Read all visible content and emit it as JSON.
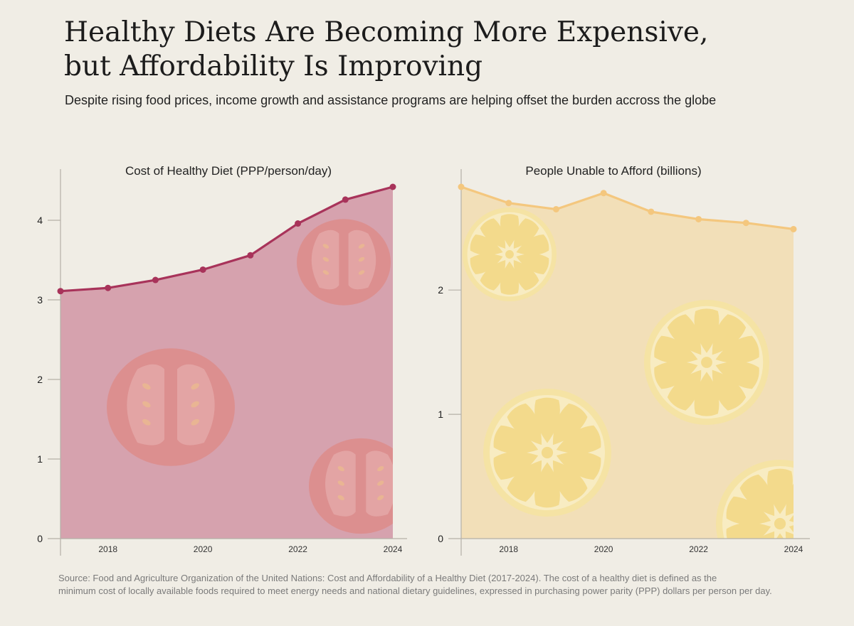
{
  "title_lines": [
    "Healthy Diets Are Becoming More Expensive,",
    "but Affordability Is Improving"
  ],
  "subtitle": "Despite rising food prices, income growth and assistance programs are helping offset the burden accross the globe",
  "source_lines": [
    "Source: Food and Agriculture Organization of the United Nations: Cost and Affordability of a Healthy Diet (2017-2024). The cost of a healthy diet is defined as the",
    "minimum cost of locally available foods required to meet energy needs and national dietary guidelines, expressed in purchasing power parity (PPP) dollars per person per day."
  ],
  "chart_data": [
    {
      "type": "area",
      "title": "Cost of Healthy Diet (PPP/person/day)",
      "x": [
        2017,
        2018,
        2019,
        2020,
        2021,
        2022,
        2023,
        2024
      ],
      "values": [
        3.11,
        3.15,
        3.25,
        3.38,
        3.56,
        3.96,
        4.26,
        4.42
      ],
      "xlim": [
        2017,
        2024
      ],
      "ylim": [
        0,
        4.42
      ],
      "xticks": [
        2018,
        2020,
        2022,
        2024
      ],
      "yticks": [
        0,
        1,
        2,
        3,
        4
      ],
      "colors": {
        "line": "#a8335a",
        "fill": "#d6a2ae",
        "decor": "tomato"
      }
    },
    {
      "type": "area",
      "title": "People Unable to Afford (billions)",
      "x": [
        2017,
        2018,
        2019,
        2020,
        2021,
        2022,
        2023,
        2024
      ],
      "values": [
        2.83,
        2.7,
        2.65,
        2.78,
        2.63,
        2.57,
        2.54,
        2.49
      ],
      "xlim": [
        2017,
        2024
      ],
      "ylim": [
        0,
        2.83
      ],
      "xticks": [
        2018,
        2020,
        2022,
        2024
      ],
      "yticks": [
        0,
        1,
        2
      ],
      "colors": {
        "line": "#f4c77e",
        "fill": "#f2dfb8",
        "decor": "lemon"
      }
    }
  ]
}
